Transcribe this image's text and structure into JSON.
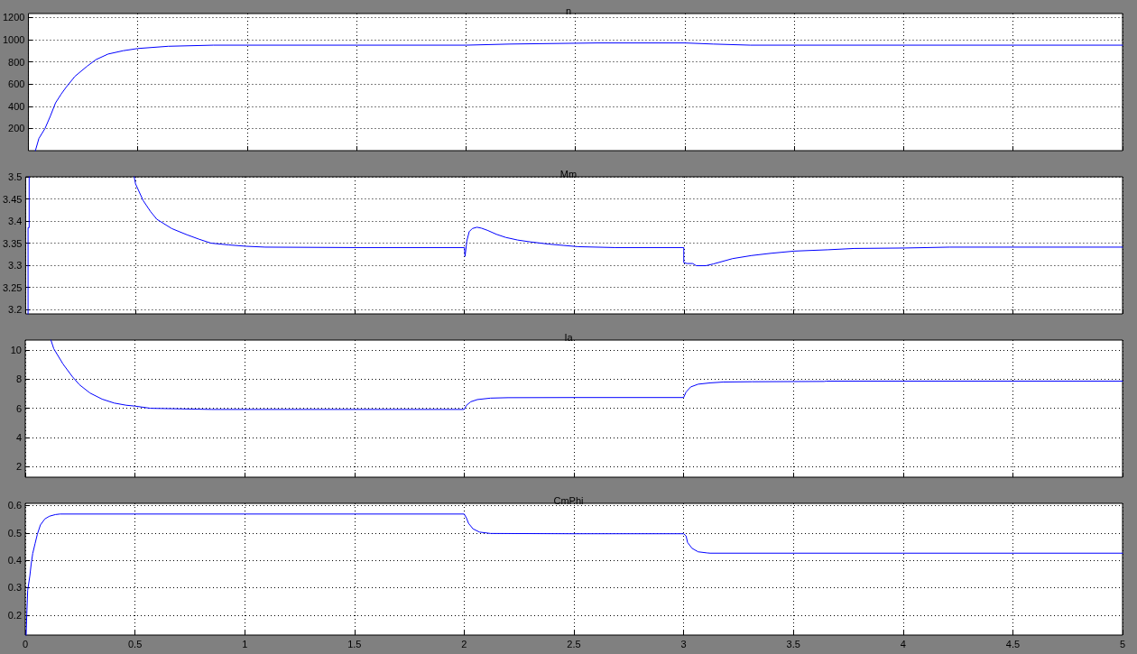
{
  "chart_data": [
    {
      "type": "line",
      "title": "n",
      "x": [
        0.032,
        0.048,
        0.076,
        0.1,
        0.124,
        0.15,
        0.172,
        0.213,
        0.268,
        0.309,
        0.364,
        0.433,
        0.5,
        0.639,
        0.845,
        1.0,
        1.5,
        2.0,
        2.2,
        2.6,
        3.0,
        3.13,
        3.3,
        4.0,
        5.0
      ],
      "series": [
        {
          "color": "#0000ff",
          "values": [
            0,
            110,
            200,
            310,
            430,
            510,
            570,
            670,
            760,
            820,
            870,
            900,
            920,
            940,
            950,
            950,
            950,
            950,
            960,
            970,
            970,
            960,
            950,
            950,
            950
          ]
        }
      ],
      "xlim": [
        0,
        5
      ],
      "xticks": [
        0,
        0.5,
        1,
        1.5,
        2,
        2.5,
        3,
        3.5,
        4,
        4.5,
        5
      ],
      "ylim": [
        0,
        1235
      ],
      "yticks": [
        200,
        400,
        600,
        800,
        1000,
        1200
      ],
      "grid": true,
      "tick_labels": "y"
    },
    {
      "type": "line",
      "title": "Mm",
      "x": [
        0.011,
        0.011,
        0.016,
        0.016,
        0.25,
        0.495,
        0.501,
        0.536,
        0.57,
        0.598,
        0.666,
        0.735,
        0.79,
        0.845,
        0.927,
        1.003,
        1.092,
        1.5,
        2.0,
        2.003,
        2.011,
        2.022,
        2.036,
        2.057,
        2.077,
        2.105,
        2.146,
        2.188,
        2.243,
        2.298,
        2.381,
        2.45,
        2.519,
        2.602,
        2.685,
        3.0,
        3.0,
        3.014,
        3.04,
        3.057,
        3.1,
        3.135,
        3.222,
        3.309,
        3.396,
        3.503,
        3.656,
        3.778,
        4.005,
        4.212,
        5.0
      ],
      "series": [
        {
          "color": "#0000ff",
          "values": [
            3.19,
            3.385,
            3.385,
            3.5,
            null,
            3.5,
            3.484,
            3.446,
            3.421,
            3.404,
            3.383,
            3.369,
            3.359,
            3.35,
            3.346,
            3.343,
            3.341,
            3.34,
            3.34,
            3.32,
            3.355,
            3.376,
            3.383,
            3.386,
            3.384,
            3.379,
            3.37,
            3.363,
            3.357,
            3.353,
            3.348,
            3.345,
            3.342,
            3.341,
            3.34,
            3.34,
            3.306,
            3.304,
            3.304,
            3.299,
            3.299,
            3.303,
            3.315,
            3.322,
            3.327,
            3.332,
            3.335,
            3.338,
            3.339,
            3.341,
            3.341
          ]
        }
      ],
      "xlim": [
        0,
        5
      ],
      "xticks": [
        0,
        0.5,
        1,
        1.5,
        2,
        2.5,
        3,
        3.5,
        4,
        4.5,
        5
      ],
      "ylim": [
        3.19,
        3.5
      ],
      "yticks": [
        3.2,
        3.25,
        3.3,
        3.35,
        3.4,
        3.45,
        3.5
      ],
      "grid": true,
      "tick_labels": "y"
    },
    {
      "type": "line",
      "title": "Ia",
      "x": [
        0.117,
        0.13,
        0.172,
        0.213,
        0.247,
        0.295,
        0.35,
        0.405,
        0.46,
        0.5,
        0.57,
        0.707,
        0.85,
        1.5,
        2.0,
        2.01,
        2.03,
        2.06,
        2.12,
        2.2,
        2.5,
        3.0,
        3.011,
        3.032,
        3.066,
        3.121,
        3.182,
        3.312,
        3.641,
        3.65,
        5.0
      ],
      "series": [
        {
          "color": "#0000ff",
          "values": [
            10.7,
            10.1,
            9.05,
            8.21,
            7.62,
            7.05,
            6.63,
            6.36,
            6.21,
            6.15,
            6.0,
            5.96,
            5.92,
            5.92,
            5.92,
            6.2,
            6.45,
            6.6,
            6.7,
            6.73,
            6.74,
            6.74,
            7.12,
            7.47,
            7.66,
            7.75,
            7.81,
            7.83,
            7.85,
            7.87,
            7.87
          ]
        }
      ],
      "xlim": [
        0,
        5
      ],
      "xticks": [
        0,
        0.5,
        1,
        1.5,
        2,
        2.5,
        3,
        3.5,
        4,
        4.5,
        5
      ],
      "ylim": [
        1.25,
        10.7
      ],
      "yticks": [
        2,
        4,
        6,
        8,
        10
      ],
      "grid": true,
      "tick_labels": "y"
    },
    {
      "type": "line",
      "title": "CmPhi",
      "x": [
        0.004,
        0.007,
        0.011,
        0.021,
        0.027,
        0.034,
        0.045,
        0.055,
        0.069,
        0.089,
        0.11,
        0.137,
        0.158,
        1.0,
        2.0,
        2.01,
        2.02,
        2.04,
        2.07,
        2.12,
        2.5,
        3.0,
        3.011,
        3.018,
        3.038,
        3.066,
        3.107,
        3.121,
        4.0,
        5.0
      ],
      "series": [
        {
          "color": "#0000ff",
          "values": [
            0.127,
            0.204,
            0.29,
            0.344,
            0.387,
            0.425,
            0.462,
            0.495,
            0.529,
            0.551,
            0.561,
            0.567,
            0.569,
            0.569,
            0.569,
            0.555,
            0.535,
            0.515,
            0.503,
            0.498,
            0.497,
            0.497,
            0.489,
            0.465,
            0.444,
            0.431,
            0.427,
            0.426,
            0.426,
            0.426
          ]
        }
      ],
      "xlim": [
        0,
        5
      ],
      "xticks": [
        0,
        0.5,
        1,
        1.5,
        2,
        2.5,
        3,
        3.5,
        4,
        4.5,
        5
      ],
      "ylim": [
        0.127,
        0.608
      ],
      "yticks": [
        0.2,
        0.3,
        0.4,
        0.5,
        0.6
      ],
      "grid": true
    }
  ]
}
